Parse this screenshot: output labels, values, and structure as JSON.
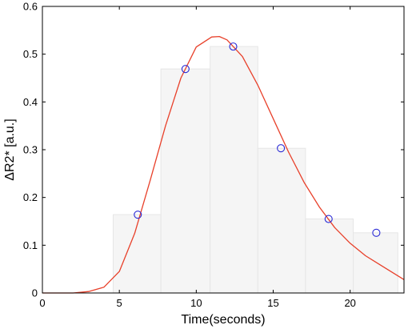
{
  "chart_data": {
    "type": "bar",
    "title": "",
    "xlabel": "Time(seconds)",
    "ylabel": "ΔR2* [a.u.]",
    "xlim": [
      0,
      23.5
    ],
    "ylim": [
      0,
      0.6
    ],
    "x_ticks": [
      0,
      5,
      10,
      15,
      20
    ],
    "y_ticks": [
      0,
      0.1,
      0.2,
      0.3,
      0.4,
      0.5,
      0.6
    ],
    "grid": false,
    "legend": "none",
    "bars": [
      {
        "x0": 4.6,
        "x1": 7.7,
        "value": 0.164
      },
      {
        "x0": 7.7,
        "x1": 10.9,
        "value": 0.469
      },
      {
        "x0": 10.9,
        "x1": 14.0,
        "value": 0.516
      },
      {
        "x0": 14.0,
        "x1": 17.1,
        "value": 0.303
      },
      {
        "x0": 17.1,
        "x1": 20.2,
        "value": 0.155
      },
      {
        "x0": 20.2,
        "x1": 23.1,
        "value": 0.126
      }
    ],
    "points": [
      {
        "x": 6.2,
        "y": 0.164
      },
      {
        "x": 9.3,
        "y": 0.469
      },
      {
        "x": 12.4,
        "y": 0.516
      },
      {
        "x": 15.5,
        "y": 0.303
      },
      {
        "x": 18.6,
        "y": 0.155
      },
      {
        "x": 21.7,
        "y": 0.126
      }
    ],
    "fit_curve": [
      {
        "x": 0,
        "y": 0
      },
      {
        "x": 2,
        "y": 0
      },
      {
        "x": 3,
        "y": 0.003
      },
      {
        "x": 4,
        "y": 0.012
      },
      {
        "x": 5,
        "y": 0.045
      },
      {
        "x": 6,
        "y": 0.125
      },
      {
        "x": 7,
        "y": 0.235
      },
      {
        "x": 8,
        "y": 0.35
      },
      {
        "x": 9,
        "y": 0.45
      },
      {
        "x": 10,
        "y": 0.515
      },
      {
        "x": 11,
        "y": 0.536
      },
      {
        "x": 11.5,
        "y": 0.537
      },
      {
        "x": 12,
        "y": 0.53
      },
      {
        "x": 13,
        "y": 0.495
      },
      {
        "x": 14,
        "y": 0.435
      },
      {
        "x": 15,
        "y": 0.365
      },
      {
        "x": 16,
        "y": 0.295
      },
      {
        "x": 17,
        "y": 0.232
      },
      {
        "x": 18,
        "y": 0.18
      },
      {
        "x": 19,
        "y": 0.137
      },
      {
        "x": 20,
        "y": 0.104
      },
      {
        "x": 21,
        "y": 0.078
      },
      {
        "x": 22,
        "y": 0.058
      },
      {
        "x": 23.5,
        "y": 0.028
      }
    ],
    "colors": {
      "bar_fill": "#f5f5f5",
      "bar_stroke": "#e6e6e6",
      "curve": "#e8402a",
      "marker": "#2b2bd6",
      "axis": "#000000"
    }
  }
}
